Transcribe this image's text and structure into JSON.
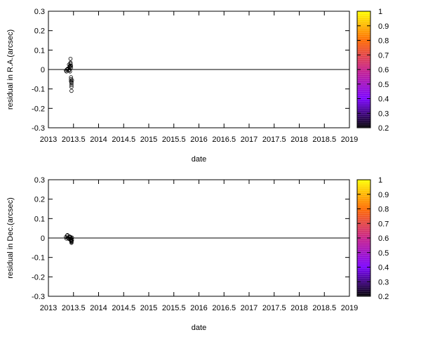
{
  "chart_data": [
    {
      "type": "scatter",
      "xlabel": "date",
      "ylabel": "residual in R.A.(arcsec)",
      "xlim": [
        2013,
        2019
      ],
      "ylim": [
        -0.3,
        0.3
      ],
      "xticks": [
        "2013",
        "2013.5",
        "2014",
        "2014.5",
        "2015",
        "2015.5",
        "2016",
        "2016.5",
        "2017",
        "2017.5",
        "2018",
        "2018.5",
        "2019"
      ],
      "yticks": [
        "-0.3",
        "-0.2",
        "-0.1",
        "0",
        "0.1",
        "0.2",
        "0.3"
      ],
      "zero_line": true,
      "grid": false,
      "colorbar": {
        "range": [
          0.2,
          1
        ],
        "ticks": [
          "0.2",
          "0.3",
          "0.4",
          "0.5",
          "0.6",
          "0.7",
          "0.8",
          "0.9",
          "1"
        ],
        "colors": [
          "#000000",
          "#7a00ff",
          "#c8208a",
          "#ff6a00",
          "#ffff00"
        ]
      },
      "series": [
        {
          "marker": "open-circle",
          "x": [
            2013.35,
            2013.36,
            2013.37,
            2013.38,
            2013.39,
            2013.41,
            2013.41,
            2013.42,
            2013.42,
            2013.43,
            2013.43,
            2013.43,
            2013.44,
            2013.44,
            2013.44,
            2013.45,
            2013.45,
            2013.45,
            2013.45,
            2013.45,
            2013.46,
            2013.46,
            2013.46,
            2013.46,
            2013.46,
            2013.47
          ],
          "y": [
            -0.005,
            -0.01,
            0.0,
            0.002,
            0.005,
            0.025,
            -0.005,
            0.0,
            0.01,
            0.015,
            0.02,
            -0.01,
            0.055,
            0.035,
            0.03,
            0.02,
            0.01,
            -0.04,
            -0.05,
            -0.06,
            -0.065,
            -0.07,
            -0.08,
            -0.09,
            -0.11,
            -0.055
          ]
        }
      ]
    },
    {
      "type": "scatter",
      "xlabel": "date",
      "ylabel": "residual in Dec.(arcsec)",
      "xlim": [
        2013,
        2019
      ],
      "ylim": [
        -0.3,
        0.3
      ],
      "xticks": [
        "2013",
        "2013.5",
        "2014",
        "2014.5",
        "2015",
        "2015.5",
        "2016",
        "2016.5",
        "2017",
        "2017.5",
        "2018",
        "2018.5",
        "2019"
      ],
      "yticks": [
        "-0.3",
        "-0.2",
        "-0.1",
        "0",
        "0.1",
        "0.2",
        "0.3"
      ],
      "zero_line": true,
      "grid": false,
      "colorbar": {
        "range": [
          0.2,
          1
        ],
        "ticks": [
          "0.2",
          "0.3",
          "0.4",
          "0.5",
          "0.6",
          "0.7",
          "0.8",
          "0.9",
          "1"
        ],
        "colors": [
          "#000000",
          "#7a00ff",
          "#c8208a",
          "#ff6a00",
          "#ffff00"
        ]
      },
      "series": [
        {
          "marker": "open-circle",
          "x": [
            2013.35,
            2013.36,
            2013.37,
            2013.38,
            2013.39,
            2013.41,
            2013.42,
            2013.43,
            2013.43,
            2013.44,
            2013.44,
            2013.45,
            2013.45,
            2013.45,
            2013.46,
            2013.46,
            2013.46,
            2013.46,
            2013.47,
            2013.47
          ],
          "y": [
            0.005,
            -0.003,
            0.012,
            0.015,
            0.0,
            -0.005,
            0.008,
            0.004,
            -0.002,
            0.005,
            -0.01,
            0.0,
            -0.008,
            -0.012,
            -0.015,
            -0.018,
            -0.02,
            -0.025,
            -0.01,
            0.002
          ]
        }
      ]
    }
  ]
}
